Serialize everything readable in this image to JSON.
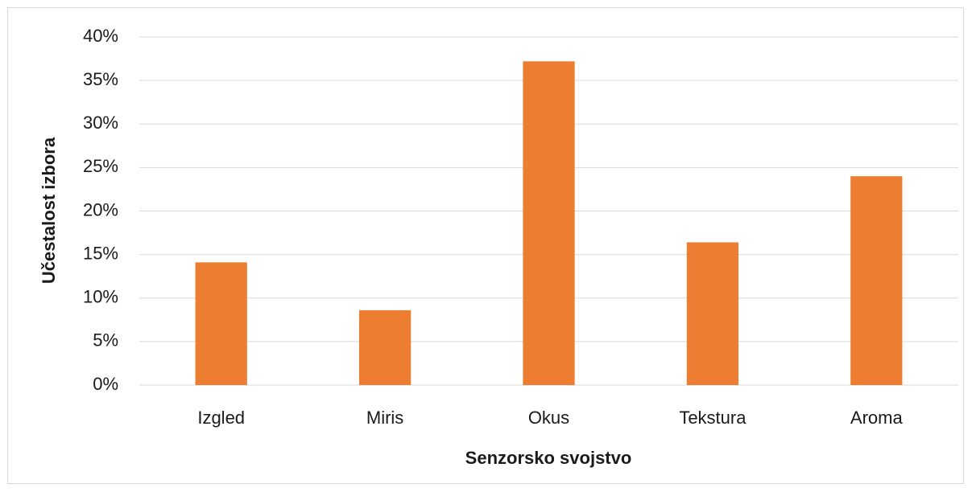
{
  "chart_data": {
    "type": "bar",
    "x_label": "Senzorsko svojstvo",
    "y_label": "Učestalost izbora",
    "categories": [
      "Izgled",
      "Miris",
      "Okus",
      "Tekstura",
      "Aroma"
    ],
    "values": [
      14.1,
      8.6,
      37.2,
      16.4,
      24.0
    ],
    "color": "#ed7d31",
    "ylim": [
      0,
      40
    ],
    "yticks": [
      {
        "value": 0,
        "label": "0%"
      },
      {
        "value": 5,
        "label": "5%"
      },
      {
        "value": 10,
        "label": "10%"
      },
      {
        "value": 15,
        "label": "15%"
      },
      {
        "value": 20,
        "label": "20%"
      },
      {
        "value": 25,
        "label": "25%"
      },
      {
        "value": 30,
        "label": "30%"
      },
      {
        "value": 35,
        "label": "35%"
      },
      {
        "value": 40,
        "label": "40%"
      }
    ],
    "grid": true
  }
}
